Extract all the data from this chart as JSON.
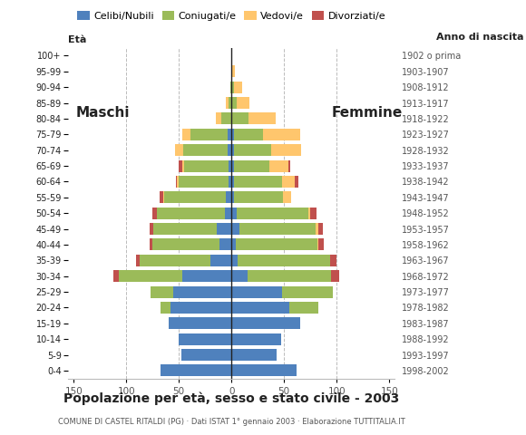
{
  "title": "Popolazione per età, sesso e stato civile - 2003",
  "subtitle": "COMUNE DI CASTEL RITALDI (PG) · Dati ISTAT 1° gennaio 2003 · Elaborazione TUTTITALIA.IT",
  "legend_labels": [
    "Celibi/Nubili",
    "Coniugati/e",
    "Vedovi/e",
    "Divorziati/e"
  ],
  "legend_colors": [
    "#4f81bd",
    "#9bbb59",
    "#ffc66d",
    "#c0504d"
  ],
  "ylabel_left": "Età",
  "ylabel_right": "Anno di nascita",
  "xlabel_left": "Maschi",
  "xlabel_right": "Femmine",
  "xlim": 155,
  "age_groups": [
    "0-4",
    "5-9",
    "10-14",
    "15-19",
    "20-24",
    "25-29",
    "30-34",
    "35-39",
    "40-44",
    "45-49",
    "50-54",
    "55-59",
    "60-64",
    "65-69",
    "70-74",
    "75-79",
    "80-84",
    "85-89",
    "90-94",
    "95-99",
    "100+"
  ],
  "birth_years": [
    "1998-2002",
    "1993-1997",
    "1988-1992",
    "1983-1987",
    "1978-1982",
    "1973-1977",
    "1968-1972",
    "1963-1967",
    "1958-1962",
    "1953-1957",
    "1948-1952",
    "1943-1947",
    "1938-1942",
    "1933-1937",
    "1928-1932",
    "1923-1927",
    "1918-1922",
    "1913-1917",
    "1908-1912",
    "1903-1907",
    "1902 o prima"
  ],
  "males": {
    "celibe": [
      67,
      48,
      50,
      60,
      58,
      55,
      47,
      20,
      11,
      14,
      6,
      5,
      3,
      3,
      4,
      4,
      0,
      0,
      0,
      0,
      0
    ],
    "coniugato": [
      0,
      0,
      0,
      0,
      9,
      22,
      60,
      67,
      64,
      60,
      65,
      59,
      47,
      42,
      42,
      35,
      10,
      3,
      1,
      0,
      0
    ],
    "vedovo": [
      0,
      0,
      0,
      0,
      0,
      0,
      0,
      0,
      0,
      0,
      0,
      1,
      2,
      2,
      8,
      8,
      5,
      2,
      0,
      0,
      0
    ],
    "divorziato": [
      0,
      0,
      0,
      0,
      0,
      0,
      5,
      4,
      3,
      4,
      4,
      3,
      1,
      3,
      0,
      0,
      0,
      0,
      0,
      0,
      0
    ]
  },
  "females": {
    "nubile": [
      62,
      43,
      47,
      65,
      55,
      48,
      15,
      6,
      4,
      8,
      5,
      2,
      2,
      2,
      2,
      2,
      0,
      0,
      0,
      0,
      0
    ],
    "coniugata": [
      0,
      0,
      0,
      0,
      28,
      48,
      80,
      88,
      78,
      72,
      68,
      47,
      46,
      34,
      36,
      28,
      16,
      5,
      2,
      0,
      0
    ],
    "vedova": [
      0,
      0,
      0,
      0,
      0,
      0,
      0,
      0,
      1,
      3,
      2,
      8,
      12,
      18,
      28,
      35,
      26,
      12,
      8,
      3,
      0
    ],
    "divorziata": [
      0,
      0,
      0,
      0,
      0,
      0,
      7,
      6,
      5,
      4,
      6,
      0,
      4,
      2,
      0,
      0,
      0,
      0,
      0,
      0,
      0
    ]
  },
  "bg_color": "#ffffff",
  "bar_height": 0.75,
  "grid_color": "#bbbbbb",
  "tick_color": "#555555",
  "text_color": "#222222"
}
